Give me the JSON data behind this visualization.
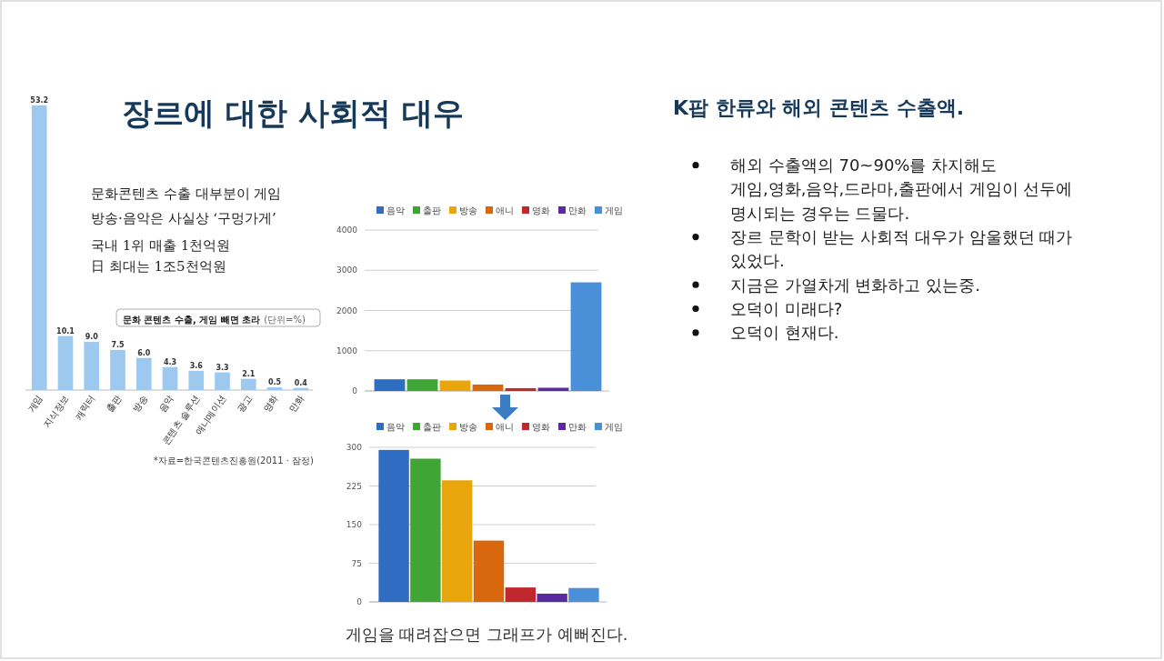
{
  "chart_data": [
    {
      "type": "other",
      "title": "장르에 대한 사회적 대우"
    },
    {
      "type": "bar",
      "title": "문화 콘텐츠 수출, 게임 빼면 초라",
      "subtitle": "(단위=%)",
      "categories": [
        "게임",
        "지식정보",
        "캐릭터",
        "출판",
        "방송",
        "음악",
        "콘텐츠 솔루션",
        "애니메이션",
        "광고",
        "영화",
        "만화"
      ],
      "values": [
        53.2,
        10.1,
        9.0,
        7.5,
        6.0,
        4.3,
        3.6,
        3.3,
        2.1,
        0.5,
        0.4
      ],
      "value_labels": [
        "53.2",
        "10.1",
        "9.0",
        "7.5",
        "6.0",
        "4.3",
        "3.6",
        "3.3",
        "2.1",
        "0.5",
        "0.4"
      ],
      "color": "#9dc9ee",
      "annotations": [
        "문화콘텐츠 수출 대부분이 게임",
        "방송·음악은 사실상 ‘구멍가게’",
        "국내 1위 매출 1천억원",
        "日 최대는 1조5천억원",
        "*자료=한국콘텐츠진흥원(2011 · 잠정)"
      ]
    },
    {
      "type": "bar",
      "categories": [
        null
      ],
      "series": [
        {
          "name": "음악",
          "color": "#2e6dc2",
          "values": [
            290
          ]
        },
        {
          "name": "출판",
          "color": "#3fa535",
          "values": [
            290
          ]
        },
        {
          "name": "방송",
          "color": "#e8a60c",
          "values": [
            260
          ]
        },
        {
          "name": "애니",
          "color": "#d9670e",
          "values": [
            160
          ]
        },
        {
          "name": "영화",
          "color": "#c0282d",
          "values": [
            70
          ]
        },
        {
          "name": "만화",
          "color": "#5b2a9e",
          "values": [
            80
          ]
        },
        {
          "name": "게임",
          "color": "#4a90d9",
          "values": [
            2700
          ]
        }
      ],
      "ylim": [
        0,
        4000
      ],
      "yticks": [
        0,
        1000,
        2000,
        3000,
        4000
      ],
      "grid": "y",
      "legend": "top"
    },
    {
      "type": "bar",
      "categories": [
        null
      ],
      "series": [
        {
          "name": "음악",
          "color": "#2e6dc2",
          "values": [
            295
          ]
        },
        {
          "name": "출판",
          "color": "#3fa535",
          "values": [
            278
          ]
        },
        {
          "name": "방송",
          "color": "#e8a60c",
          "values": [
            236
          ]
        },
        {
          "name": "애니",
          "color": "#d9670e",
          "values": [
            119
          ]
        },
        {
          "name": "영화",
          "color": "#c0282d",
          "values": [
            28
          ]
        },
        {
          "name": "만화",
          "color": "#5b2a9e",
          "values": [
            16
          ]
        },
        {
          "name": "게임",
          "color": "#4a90d9",
          "values": [
            27
          ]
        }
      ],
      "ylim": [
        0,
        300
      ],
      "yticks": [
        0,
        75,
        150,
        225,
        300
      ],
      "grid": "y",
      "legend": "top",
      "annotations": [
        "게임을 때려잡으면 그래프가 예뻐진다."
      ]
    },
    {
      "type": "other",
      "title": "K팝 한류와 해외 콘텐츠 수출액.",
      "annotations": [
        "해외 수출액의 70~90%를 차지해도\n게임,영화,음악,드라마,출판에서 게임이 선두에\n명시되는 경우는 드물다.",
        "장르 문학이 받는 사회적 대우가 암울했던 때가\n있었다.",
        "지금은 가열차게 변화하고 있는중.",
        "오덕이 미래다?",
        "오덕이 현재다."
      ]
    }
  ]
}
